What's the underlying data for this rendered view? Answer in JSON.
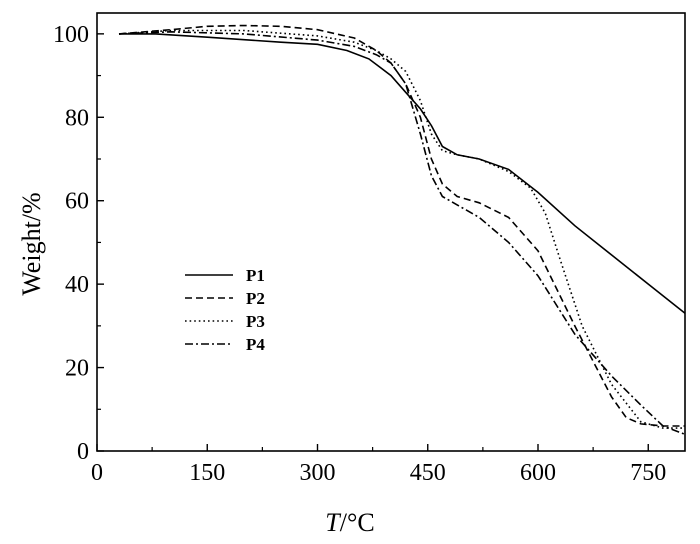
{
  "chart_data": {
    "type": "line",
    "xlabel": {
      "italic": "T",
      "rest": "/°C"
    },
    "ylabel": "Weight/%",
    "xlim": [
      0,
      800
    ],
    "ylim": [
      0,
      105
    ],
    "xticks": [
      0,
      150,
      300,
      450,
      600,
      750
    ],
    "yticks": [
      0,
      20,
      40,
      60,
      80,
      100
    ],
    "grid": false,
    "legend_position": "center-left",
    "series": [
      {
        "name": "P1",
        "dash": "solid",
        "x": [
          30,
          80,
          150,
          250,
          300,
          340,
          370,
          400,
          420,
          440,
          455,
          470,
          490,
          520,
          560,
          600,
          650,
          700,
          750,
          800
        ],
        "y": [
          100,
          100,
          99.2,
          98,
          97.5,
          96,
          94,
          90,
          86,
          82,
          78,
          73,
          71,
          70,
          67.5,
          62,
          54,
          47,
          40,
          33
        ]
      },
      {
        "name": "P2",
        "dash": "dashed",
        "x": [
          30,
          100,
          150,
          200,
          250,
          300,
          350,
          380,
          400,
          420,
          440,
          455,
          470,
          490,
          520,
          560,
          600,
          650,
          700,
          720,
          740,
          770,
          800
        ],
        "y": [
          100,
          101,
          101.8,
          102,
          101.8,
          101,
          99,
          96,
          93,
          88,
          80,
          70,
          64,
          61,
          59.5,
          56,
          48,
          30,
          13,
          8,
          6.5,
          6,
          6
        ]
      },
      {
        "name": "P3",
        "dash": "dotted",
        "x": [
          30,
          100,
          200,
          300,
          350,
          380,
          400,
          420,
          440,
          455,
          470,
          490,
          520,
          560,
          590,
          610,
          630,
          660,
          700,
          740,
          770,
          800
        ],
        "y": [
          100,
          100.8,
          100.8,
          99.5,
          98,
          96,
          94,
          91,
          84,
          76,
          72,
          71,
          70,
          67,
          63,
          57,
          46,
          30,
          16,
          7,
          5.5,
          5.5
        ]
      },
      {
        "name": "P4",
        "dash": "dash-dot",
        "x": [
          30,
          100,
          200,
          300,
          350,
          380,
          400,
          420,
          440,
          455,
          470,
          490,
          520,
          560,
          600,
          650,
          700,
          740,
          770,
          800
        ],
        "y": [
          100,
          100.5,
          100,
          98.5,
          97,
          95,
          93,
          88,
          76,
          66,
          61,
          59,
          56,
          50,
          42,
          28,
          18,
          11,
          6,
          4
        ]
      }
    ]
  }
}
